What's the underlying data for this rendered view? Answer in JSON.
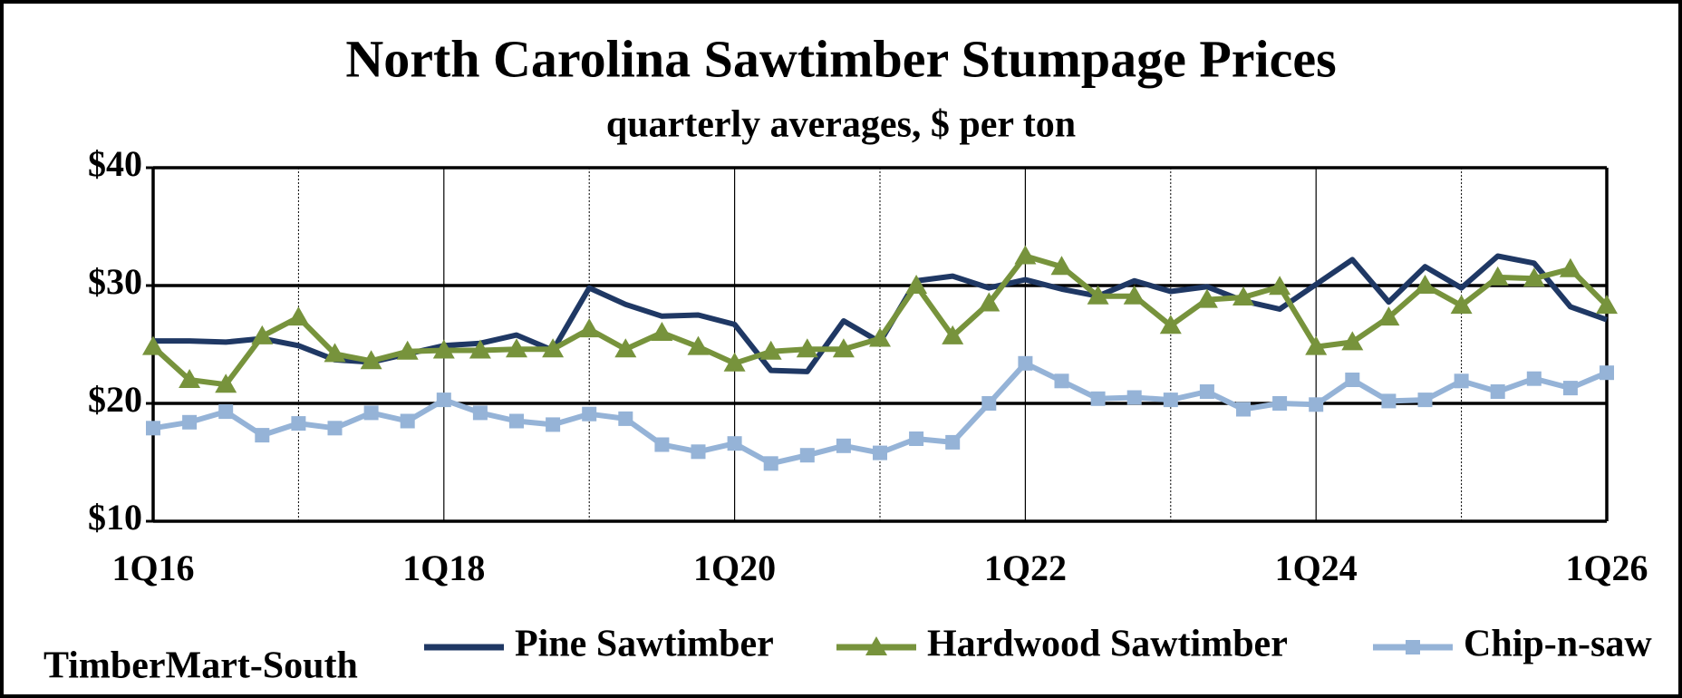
{
  "chart_data": {
    "type": "line",
    "title": "North Carolina Sawtimber Stumpage Prices",
    "subtitle": "quarterly averages, $ per ton",
    "source": "TimberMart-South",
    "categories": [
      "1Q16",
      null,
      null,
      null,
      null,
      null,
      null,
      null,
      "1Q18",
      null,
      null,
      null,
      null,
      null,
      null,
      null,
      "1Q20",
      null,
      null,
      null,
      null,
      null,
      null,
      null,
      "1Q22",
      null,
      null,
      null,
      null,
      null,
      null,
      null,
      "1Q24",
      null,
      null,
      null,
      null,
      null,
      null,
      null,
      "1Q26"
    ],
    "ylim": [
      10,
      40
    ],
    "yticks": [
      {
        "value": 10,
        "label": "$10"
      },
      {
        "value": 20,
        "label": "$20"
      },
      {
        "value": 30,
        "label": "$30"
      },
      {
        "value": 40,
        "label": "$40"
      }
    ],
    "grid": true,
    "legend": "bottom",
    "series": [
      {
        "name": "Pine Sawtimber",
        "color": "#1f3864",
        "marker": "none",
        "values": [
          25.3,
          25.3,
          25.2,
          25.5,
          24.9,
          23.7,
          23.5,
          24.2,
          24.9,
          25.1,
          25.8,
          24.5,
          29.8,
          28.4,
          27.4,
          27.5,
          26.7,
          22.8,
          22.7,
          27.0,
          25.2,
          30.4,
          30.8,
          29.8,
          30.5,
          29.7,
          29.1,
          30.4,
          29.5,
          29.9,
          28.7,
          28.0,
          30.1,
          32.2,
          28.6,
          31.6,
          29.8,
          32.5,
          31.9,
          28.2,
          27.1
        ]
      },
      {
        "name": "Hardwood Sawtimber",
        "color": "#77933c",
        "marker": "triangle",
        "values": [
          24.8,
          22.0,
          21.6,
          25.7,
          27.3,
          24.2,
          23.6,
          24.4,
          24.5,
          24.5,
          24.6,
          24.6,
          26.3,
          24.6,
          26.0,
          24.8,
          23.4,
          24.4,
          24.6,
          24.6,
          25.5,
          30.0,
          25.7,
          28.5,
          32.5,
          31.6,
          29.1,
          29.1,
          26.6,
          28.8,
          29.0,
          29.9,
          24.8,
          25.2,
          27.3,
          30.0,
          28.3,
          30.7,
          30.6,
          31.4,
          28.3
        ]
      },
      {
        "name": "Chip-n-saw",
        "color": "#95b3d7",
        "marker": "square",
        "values": [
          17.9,
          18.4,
          19.3,
          17.3,
          18.3,
          17.9,
          19.2,
          18.5,
          20.3,
          19.2,
          18.5,
          18.2,
          19.1,
          18.7,
          16.5,
          15.9,
          16.6,
          14.9,
          15.6,
          16.4,
          15.8,
          17.0,
          16.7,
          20.0,
          23.4,
          21.9,
          20.4,
          20.5,
          20.3,
          21.0,
          19.5,
          20.0,
          19.9,
          22.0,
          20.2,
          20.3,
          21.9,
          21.0,
          22.1,
          21.3,
          22.6
        ]
      }
    ]
  }
}
